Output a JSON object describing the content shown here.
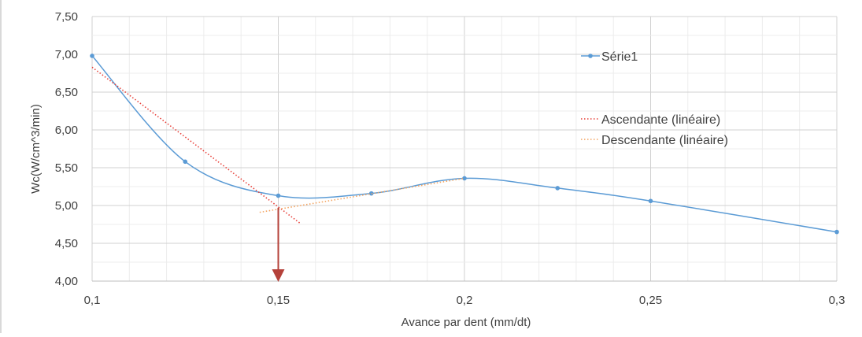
{
  "chart_data": {
    "type": "scatter",
    "title": "",
    "xlabel": "Avance par dent (mm/dt)",
    "ylabel": "Wc(W/cm^3/min)",
    "xlim": [
      0.1,
      0.3
    ],
    "ylim": [
      4.0,
      7.5
    ],
    "x_ticks": [
      "0,1",
      "0,15",
      "0,2",
      "0,25",
      "0,3"
    ],
    "y_ticks": [
      "4,00",
      "4,50",
      "5,00",
      "5,50",
      "6,00",
      "6,50",
      "7,00",
      "7,50"
    ],
    "x_tick_values": [
      0.1,
      0.15,
      0.2,
      0.25,
      0.3
    ],
    "y_tick_values": [
      4.0,
      4.5,
      5.0,
      5.5,
      6.0,
      6.5,
      7.0,
      7.5
    ],
    "grid": true,
    "legend_position": "right",
    "series": [
      {
        "name": "Série1",
        "style": "smooth line with markers",
        "color": "#5b9bd5",
        "x": [
          0.1,
          0.125,
          0.15,
          0.175,
          0.2,
          0.225,
          0.25,
          0.3
        ],
        "y": [
          6.98,
          5.58,
          5.13,
          5.16,
          5.36,
          5.23,
          5.06,
          4.65
        ]
      },
      {
        "name": "Ascendante (linéaire)",
        "style": "dotted trendline",
        "color": "#e8423b",
        "x": [
          0.1,
          0.156
        ],
        "y": [
          6.83,
          4.76
        ]
      },
      {
        "name": "Descendante (linéaire)",
        "style": "dotted trendline",
        "color": "#f4a460",
        "x": [
          0.145,
          0.2
        ],
        "y": [
          4.91,
          5.36
        ]
      }
    ],
    "annotations": [
      {
        "type": "arrow",
        "color": "#b5413a",
        "x": 0.15,
        "y_from": 4.97,
        "y_to": 4.0
      }
    ]
  }
}
